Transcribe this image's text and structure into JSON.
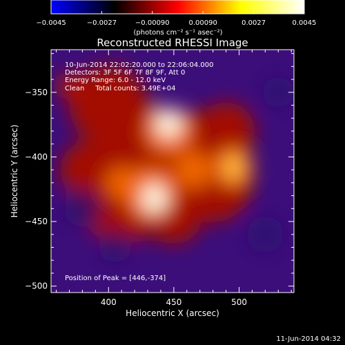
{
  "chart_data": {
    "type": "heatmap",
    "title": "Reconstructed RHESSI Image",
    "xlabel": "Heliocentric X (arcsec)",
    "ylabel": "Heliocentric Y (arcsec)",
    "xlim": [
      356,
      542
    ],
    "ylim": [
      -505,
      -317
    ],
    "x_ticks": [
      400,
      450,
      500
    ],
    "y_ticks": [
      -350,
      -400,
      -450,
      -500
    ],
    "x_tick_labels": [
      "400",
      "450",
      "500"
    ],
    "y_tick_labels": [
      "−350",
      "−400",
      "−450",
      "−500"
    ],
    "colorbar": {
      "range": [
        -0.0045,
        0.0045
      ],
      "ticks": [
        -0.0045,
        -0.0027,
        -0.0009,
        0.0009,
        0.0027,
        0.0045
      ],
      "tick_labels": [
        "−0.0045",
        "−0.0027",
        "−0.00090",
        "0.00090",
        "0.0027",
        "0.0045"
      ],
      "unit_label": "(photons cm⁻² s⁻¹ asec⁻²)",
      "colors": [
        "#0000ff",
        "#000000",
        "#ff0000",
        "#ffff00",
        "#ffffff"
      ]
    },
    "annotations": [
      "10-Jun-2014 22:02:20.000 to 22:06:04.000",
      "Detectors: 3F 5F 6F 7F 8F 9F, Att 0",
      "Energy Range: 6.0 - 12.0 keV",
      "Clean     Total counts: 3.49E+04"
    ],
    "peak_label": "Position of Peak = [446,-374]",
    "sources": [
      {
        "x": 446,
        "y": -374,
        "flux": 0.0045
      },
      {
        "x": 435,
        "y": -432,
        "flux": 0.0045
      },
      {
        "x": 496,
        "y": -408,
        "flux": 0.0036
      },
      {
        "x": 370,
        "y": -345,
        "flux": 0.0012
      }
    ],
    "background_flux": -0.0018
  },
  "footer_date": "11-Jun-2014 04:32"
}
